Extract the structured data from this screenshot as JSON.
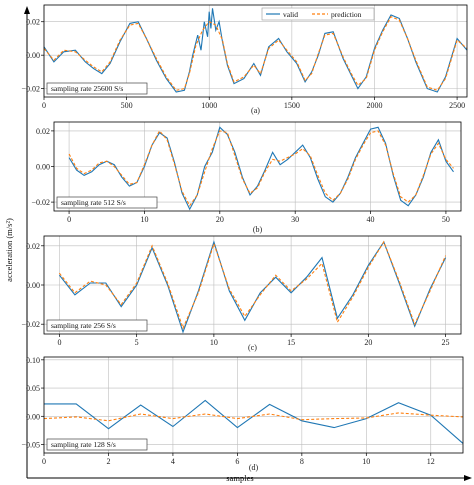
{
  "figure": {
    "ylabel": "acceleration (m/s²)",
    "xlabel": "samples",
    "legend": [
      "valid",
      "prediction"
    ],
    "colors": {
      "valid": "#1f77b4",
      "prediction": "#ff7f0e",
      "grid": "#bdbdbd",
      "axis": "#000000"
    }
  },
  "chart_data": [
    {
      "type": "line",
      "caption": "(a)",
      "annotation": "sampling rate  25600 S/s",
      "xlim": [
        0,
        2560
      ],
      "ylim": [
        -0.025,
        0.03
      ],
      "xticks": [
        0,
        500,
        1000,
        1500,
        2000,
        2500
      ],
      "yticks": [
        -0.02,
        0.0,
        0.02
      ],
      "ytick_labels": [
        "−0.02",
        "0.00",
        "0.02"
      ],
      "legend_position": "top-right",
      "grid": true,
      "series": [
        {
          "name": "valid",
          "x": [
            0,
            60,
            120,
            190,
            250,
            300,
            350,
            400,
            460,
            520,
            570,
            620,
            680,
            740,
            800,
            850,
            880,
            900,
            930,
            950,
            970,
            990,
            1000,
            1010,
            1020,
            1040,
            1060,
            1080,
            1110,
            1150,
            1210,
            1270,
            1310,
            1360,
            1420,
            1470,
            1530,
            1580,
            1620,
            1660,
            1700,
            1750,
            1810,
            1860,
            1900,
            1950,
            2000,
            2050,
            2100,
            2150,
            2200,
            2250,
            2320,
            2380,
            2430,
            2500,
            2560
          ],
          "y": [
            0.005,
            -0.004,
            0.002,
            0.003,
            -0.004,
            -0.008,
            -0.011,
            -0.005,
            0.008,
            0.019,
            0.02,
            0.01,
            -0.003,
            -0.014,
            -0.022,
            -0.021,
            -0.01,
            0.0,
            0.012,
            0.003,
            0.02,
            0.011,
            0.026,
            0.016,
            0.028,
            0.015,
            0.02,
            0.008,
            -0.006,
            -0.017,
            -0.014,
            -0.005,
            -0.012,
            0.005,
            0.01,
            0.002,
            -0.005,
            -0.016,
            -0.01,
            0.0,
            0.013,
            0.014,
            -0.002,
            -0.012,
            -0.02,
            -0.013,
            0.004,
            0.015,
            0.024,
            0.022,
            0.01,
            -0.004,
            -0.02,
            -0.022,
            -0.013,
            0.01,
            0.003
          ]
        },
        {
          "name": "prediction",
          "x": [
            0,
            60,
            120,
            190,
            250,
            300,
            350,
            400,
            460,
            520,
            570,
            620,
            680,
            740,
            800,
            850,
            880,
            920,
            960,
            1000,
            1040,
            1080,
            1110,
            1150,
            1210,
            1270,
            1310,
            1360,
            1420,
            1470,
            1530,
            1580,
            1620,
            1660,
            1700,
            1750,
            1810,
            1860,
            1900,
            1950,
            2000,
            2050,
            2100,
            2150,
            2200,
            2250,
            2320,
            2380,
            2430,
            2500,
            2560
          ],
          "y": [
            0.004,
            -0.003,
            0.003,
            0.002,
            -0.003,
            -0.007,
            -0.01,
            -0.004,
            0.009,
            0.018,
            0.019,
            0.01,
            -0.002,
            -0.013,
            -0.021,
            -0.02,
            -0.011,
            0.006,
            0.015,
            0.02,
            0.018,
            0.009,
            -0.005,
            -0.016,
            -0.013,
            -0.006,
            -0.011,
            0.004,
            0.009,
            0.003,
            -0.004,
            -0.015,
            -0.011,
            0.001,
            0.012,
            0.013,
            -0.001,
            -0.011,
            -0.018,
            -0.014,
            0.003,
            0.014,
            0.023,
            0.021,
            0.01,
            -0.003,
            -0.019,
            -0.021,
            -0.014,
            0.009,
            0.004
          ]
        }
      ]
    },
    {
      "type": "line",
      "caption": "(b)",
      "annotation": "sampling rate  512 S/s",
      "xlim": [
        -2,
        52
      ],
      "ylim": [
        -0.025,
        0.025
      ],
      "xticks": [
        0,
        10,
        20,
        30,
        40,
        50
      ],
      "yticks": [
        -0.02,
        0.0,
        0.02
      ],
      "ytick_labels": [
        "−0.02",
        "0.00",
        "0.02"
      ],
      "grid": true,
      "series": [
        {
          "name": "valid",
          "x": [
            0,
            1,
            2,
            3,
            4,
            5,
            6,
            7,
            8,
            9,
            10,
            11,
            12,
            13,
            14,
            15,
            16,
            17,
            18,
            19,
            20,
            21,
            22,
            23,
            24,
            25,
            26,
            27,
            28,
            29,
            30,
            31,
            32,
            33,
            34,
            35,
            36,
            37,
            38,
            39,
            40,
            41,
            42,
            43,
            44,
            45,
            46,
            47,
            48,
            49,
            50,
            51
          ],
          "y": [
            0.005,
            -0.002,
            -0.005,
            -0.003,
            0.001,
            0.003,
            0.001,
            -0.006,
            -0.011,
            -0.009,
            0.0,
            0.012,
            0.019,
            0.016,
            0.002,
            -0.015,
            -0.024,
            -0.016,
            0.0,
            0.008,
            0.022,
            0.018,
            0.008,
            -0.006,
            -0.016,
            -0.011,
            -0.002,
            0.008,
            0.001,
            0.004,
            0.008,
            0.012,
            0.005,
            -0.007,
            -0.017,
            -0.02,
            -0.015,
            -0.006,
            0.005,
            0.013,
            0.021,
            0.022,
            0.013,
            -0.005,
            -0.019,
            -0.022,
            -0.016,
            -0.006,
            0.008,
            0.015,
            0.003,
            -0.003
          ]
        },
        {
          "name": "prediction",
          "x": [
            0,
            1,
            2,
            3,
            4,
            5,
            6,
            7,
            8,
            9,
            10,
            11,
            12,
            13,
            14,
            15,
            16,
            17,
            18,
            19,
            20,
            21,
            22,
            23,
            24,
            25,
            26,
            27,
            28,
            29,
            30,
            31,
            32,
            33,
            34,
            35,
            36,
            37,
            38,
            39,
            40,
            41,
            42,
            43,
            44,
            45,
            46,
            47,
            48,
            49,
            50,
            51
          ],
          "y": [
            0.007,
            -0.001,
            -0.004,
            -0.002,
            0.002,
            0.003,
            0.0,
            -0.005,
            -0.01,
            -0.009,
            0.001,
            0.012,
            0.02,
            0.015,
            0.001,
            -0.014,
            -0.022,
            -0.016,
            -0.003,
            0.01,
            0.02,
            0.019,
            0.006,
            -0.007,
            -0.015,
            -0.012,
            -0.003,
            0.004,
            0.003,
            0.005,
            0.007,
            0.01,
            0.006,
            -0.005,
            -0.015,
            -0.019,
            -0.015,
            -0.007,
            0.004,
            0.012,
            0.019,
            0.02,
            0.012,
            -0.004,
            -0.017,
            -0.02,
            -0.016,
            -0.005,
            0.007,
            0.013,
            0.004,
            -0.001
          ]
        }
      ]
    },
    {
      "type": "line",
      "caption": "(c)",
      "annotation": "sampling rate  256 S/s",
      "xlim": [
        -1,
        26
      ],
      "ylim": [
        -0.025,
        0.025
      ],
      "xticks": [
        0,
        5,
        10,
        15,
        20,
        25
      ],
      "yticks": [
        -0.02,
        0.0,
        0.02
      ],
      "ytick_labels": [
        "−0.02",
        "0.00",
        "0.02"
      ],
      "grid": true,
      "series": [
        {
          "name": "valid",
          "x": [
            0,
            1,
            2,
            3,
            4,
            5,
            6,
            7,
            8,
            9,
            10,
            11,
            12,
            13,
            14,
            15,
            16,
            17,
            18,
            19,
            20,
            21,
            22,
            23,
            24,
            25
          ],
          "y": [
            0.005,
            -0.005,
            0.001,
            0.001,
            -0.011,
            0.0,
            0.019,
            0.0,
            -0.024,
            -0.003,
            0.022,
            -0.003,
            -0.018,
            -0.004,
            0.004,
            -0.004,
            0.004,
            0.014,
            -0.017,
            -0.005,
            0.01,
            0.022,
            0.001,
            -0.021,
            -0.002,
            0.014
          ]
        },
        {
          "name": "prediction",
          "x": [
            0,
            1,
            2,
            3,
            4,
            5,
            6,
            7,
            8,
            9,
            10,
            11,
            12,
            13,
            14,
            15,
            16,
            17,
            18,
            19,
            20,
            21,
            22,
            23,
            24,
            25
          ],
          "y": [
            0.006,
            -0.004,
            0.002,
            0.0,
            -0.01,
            0.001,
            0.02,
            0.001,
            -0.022,
            -0.004,
            0.021,
            -0.002,
            -0.016,
            -0.005,
            0.005,
            -0.003,
            0.003,
            0.011,
            -0.019,
            -0.006,
            0.009,
            0.022,
            0.002,
            -0.02,
            -0.003,
            0.015
          ]
        }
      ]
    },
    {
      "type": "line",
      "caption": "(d)",
      "annotation": "sampling rate  128 S/s",
      "xlim": [
        0,
        13
      ],
      "ylim": [
        -0.065,
        0.105
      ],
      "xticks": [
        0,
        2,
        4,
        6,
        8,
        10,
        12
      ],
      "yticks": [
        -0.05,
        0.0,
        0.05,
        0.1
      ],
      "ytick_labels": [
        "−0.05",
        "0.00",
        "0.05",
        "0.10"
      ],
      "grid": true,
      "series": [
        {
          "name": "valid",
          "x": [
            0,
            1,
            2,
            3,
            4,
            5,
            6,
            7,
            8,
            9,
            10,
            11,
            12,
            13
          ],
          "y": [
            0.022,
            0.022,
            -0.022,
            0.02,
            -0.018,
            0.028,
            -0.02,
            0.021,
            -0.008,
            -0.02,
            -0.004,
            0.024,
            0.002,
            -0.048
          ]
        },
        {
          "name": "prediction",
          "x": [
            0,
            1,
            2,
            3,
            4,
            5,
            6,
            7,
            8,
            9,
            10,
            11,
            12,
            13
          ],
          "y": [
            -0.004,
            -0.001,
            -0.008,
            0.004,
            -0.004,
            0.004,
            -0.004,
            0.004,
            -0.006,
            -0.004,
            -0.003,
            0.006,
            0.002,
            -0.001
          ]
        }
      ]
    }
  ]
}
